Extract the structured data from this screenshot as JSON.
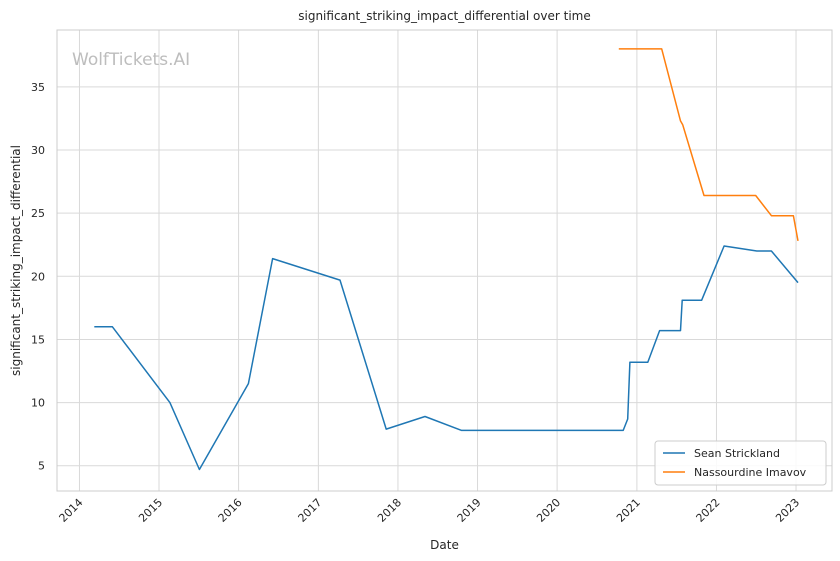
{
  "chart_data": {
    "type": "line",
    "title": "significant_striking_impact_differential over time",
    "xlabel": "Date",
    "ylabel": "significant_striking_impact_differential",
    "watermark": "WolfTickets.AI",
    "x_ticks": [
      "2014",
      "2015",
      "2016",
      "2017",
      "2018",
      "2019",
      "2020",
      "2021",
      "2022",
      "2023"
    ],
    "y_ticks": [
      5,
      10,
      15,
      20,
      25,
      30,
      35
    ],
    "xlim": [
      "2013-09-20",
      "2023-06-15"
    ],
    "ylim": [
      3.0,
      39.5
    ],
    "grid": true,
    "legend_position": "lower-right",
    "series": [
      {
        "name": "Sean Strickland",
        "color": "#1f77b4",
        "points": [
          [
            "2014-03-10",
            16.0
          ],
          [
            "2014-06-01",
            16.0
          ],
          [
            "2015-02-20",
            10.0
          ],
          [
            "2015-07-05",
            4.7
          ],
          [
            "2016-02-15",
            11.5
          ],
          [
            "2016-06-05",
            21.4
          ],
          [
            "2017-04-10",
            19.7
          ],
          [
            "2017-11-08",
            7.9
          ],
          [
            "2018-05-05",
            8.9
          ],
          [
            "2018-10-20",
            7.8
          ],
          [
            "2020-10-30",
            7.8
          ],
          [
            "2020-11-20",
            8.7
          ],
          [
            "2020-11-30",
            13.2
          ],
          [
            "2021-02-20",
            13.2
          ],
          [
            "2021-04-15",
            15.7
          ],
          [
            "2021-07-20",
            15.7
          ],
          [
            "2021-07-28",
            18.1
          ],
          [
            "2021-10-25",
            18.1
          ],
          [
            "2022-02-05",
            22.4
          ],
          [
            "2022-07-05",
            22.0
          ],
          [
            "2022-09-10",
            22.0
          ],
          [
            "2023-01-10",
            19.5
          ]
        ]
      },
      {
        "name": "Nassourdine Imavov",
        "color": "#ff7f0e",
        "points": [
          [
            "2020-10-10",
            38.0
          ],
          [
            "2021-04-25",
            38.0
          ],
          [
            "2021-07-20",
            32.3
          ],
          [
            "2021-07-30",
            32.0
          ],
          [
            "2021-11-05",
            26.4
          ],
          [
            "2022-06-30",
            26.4
          ],
          [
            "2022-09-10",
            24.8
          ],
          [
            "2022-12-20",
            24.8
          ],
          [
            "2023-01-10",
            22.8
          ]
        ]
      }
    ]
  }
}
